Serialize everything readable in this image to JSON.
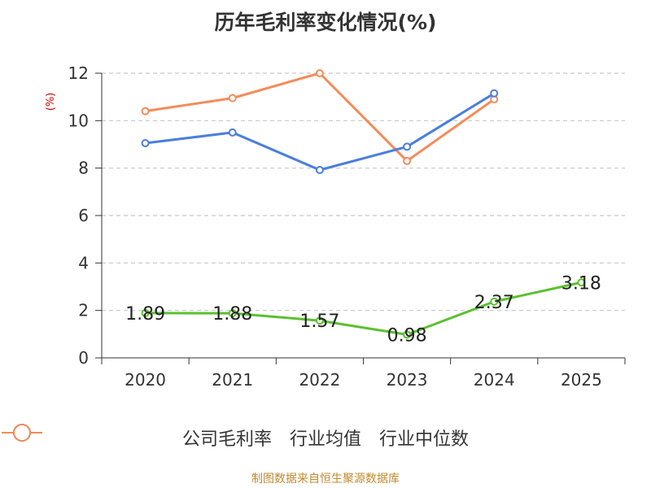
{
  "chart_data": {
    "type": "line",
    "title": "历年毛利率变化情况(%)",
    "ylabel": "(%)",
    "xlabel": "",
    "categories": [
      "2020",
      "2021",
      "2022",
      "2023",
      "2024",
      "2025"
    ],
    "ylim": [
      0,
      12
    ],
    "yticks": [
      0,
      2,
      4,
      6,
      8,
      10,
      12
    ],
    "grid": true,
    "legend_position": "bottom",
    "series": [
      {
        "name": "公司毛利率",
        "color": "#5ac12e",
        "values": [
          1.89,
          1.88,
          1.57,
          0.98,
          2.37,
          3.18
        ],
        "labels": [
          "1.89",
          "1.88",
          "1.57",
          "0.98",
          "2.37",
          "3.18"
        ]
      },
      {
        "name": "行业均值",
        "color": "#4a7ede",
        "values": [
          9.05,
          9.5,
          7.92,
          8.9,
          11.15,
          null
        ]
      },
      {
        "name": "行业中位数",
        "color": "#f58b5a",
        "values": [
          10.4,
          10.95,
          12.0,
          8.3,
          10.9,
          null
        ]
      }
    ]
  },
  "source_note": "制图数据来自恒生聚源数据库"
}
